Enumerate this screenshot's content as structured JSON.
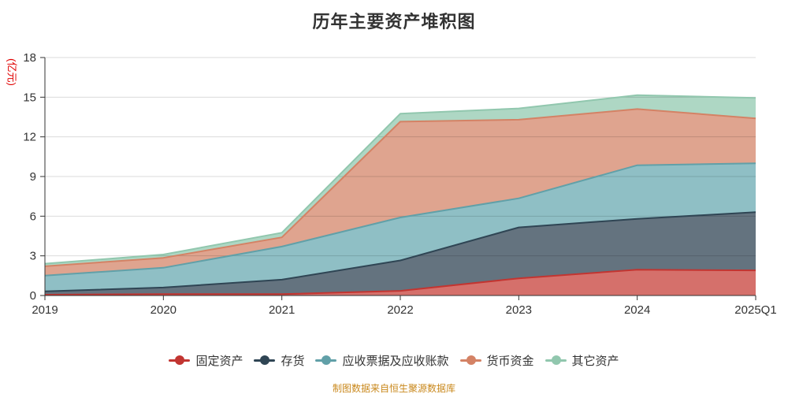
{
  "title": "历年主要资产堆积图",
  "y_axis_name": "(亿元)",
  "footer": "制图数据来自恒生聚源数据库",
  "colors": {
    "title_text": "#333333",
    "axis_line": "#333333",
    "tick_label": "#333333",
    "grid_line": "#d9d9d9",
    "y_axis_name_text": "#e00000",
    "footer_text": "#c9881c",
    "legend_text": "#333333"
  },
  "chart_data": {
    "type": "area",
    "stacked": true,
    "title": "历年主要资产堆积图",
    "xlabel": "",
    "ylabel": "(亿元)",
    "categories": [
      "2019",
      "2020",
      "2021",
      "2022",
      "2023",
      "2024",
      "2025Q1"
    ],
    "series": [
      {
        "id": "fixed-assets",
        "name": "固定资产",
        "color": "#c23531",
        "fill": "#d5706b",
        "values": [
          0.06,
          0.1,
          0.1,
          0.35,
          1.3,
          1.95,
          1.9
        ]
      },
      {
        "id": "inventory",
        "name": "存货",
        "color": "#2f4554",
        "fill": "#64737f",
        "values": [
          0.25,
          0.5,
          1.1,
          2.3,
          3.85,
          3.85,
          4.4
        ]
      },
      {
        "id": "notes-accounts-receivable",
        "name": "应收票据及应收账款",
        "color": "#61a0a8",
        "fill": "#8fbfc5",
        "values": [
          1.2,
          1.5,
          2.5,
          3.25,
          2.2,
          4.05,
          3.7
        ]
      },
      {
        "id": "monetary-funds",
        "name": "货币资金",
        "color": "#d48265",
        "fill": "#dfa48f",
        "values": [
          0.7,
          0.75,
          0.7,
          7.25,
          5.95,
          4.25,
          3.4
        ]
      },
      {
        "id": "other-assets",
        "name": "其它资产",
        "color": "#91c7ae",
        "fill": "#aed7c4",
        "values": [
          0.2,
          0.25,
          0.35,
          0.6,
          0.85,
          1.05,
          1.55
        ]
      }
    ],
    "ylim": [
      0,
      18
    ],
    "y_ticks": [
      0,
      3,
      6,
      9,
      12,
      15,
      18
    ],
    "grid": true,
    "legend_position": "bottom"
  }
}
